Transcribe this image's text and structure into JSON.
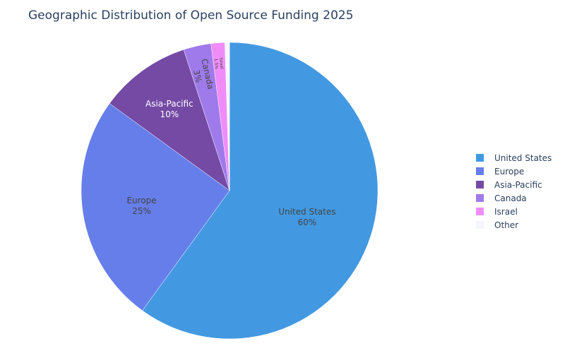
{
  "chart_data": {
    "type": "pie",
    "title": "Geographic Distribution of Open Source Funding 2025",
    "slices": [
      {
        "label": "United States",
        "value": 60,
        "percent_text": "60%",
        "color": "#4299e1"
      },
      {
        "label": "Europe",
        "value": 25,
        "percent_text": "25%",
        "color": "#667eea"
      },
      {
        "label": "Asia-Pacific",
        "value": 10,
        "percent_text": "10%",
        "color": "#744aa5"
      },
      {
        "label": "Canada",
        "value": 3,
        "percent_text": "3%",
        "color": "#9f7aea"
      },
      {
        "label": "Israel",
        "value": 1.5,
        "percent_text": "1.5%",
        "color": "#f08cf8"
      },
      {
        "label": "Other",
        "value": 0.5,
        "percent_text": "",
        "color": "#f4f6fa"
      }
    ],
    "legend_position": "right"
  }
}
